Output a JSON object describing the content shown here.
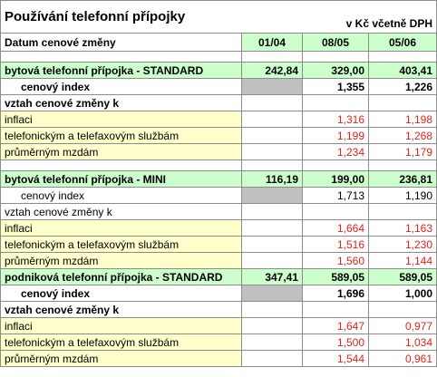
{
  "header": {
    "title": "Používání telefonní přípojky",
    "unit": "v Kč včetně DPH"
  },
  "table": {
    "columns_label": "Datum cenové změny",
    "columns": [
      "01/04",
      "08/05",
      "05/06"
    ],
    "rows": [
      {
        "label": "bytová telefonní přípojka - STANDARD",
        "values": [
          "242,84",
          "329,00",
          "403,41"
        ]
      },
      {
        "label": "cenový index",
        "values": [
          null,
          "1,355",
          "1,226"
        ]
      },
      {
        "label": "vztah cenové změny k",
        "values": [
          null,
          null,
          null
        ]
      },
      {
        "label": "inflaci",
        "values": [
          null,
          "1,316",
          "1,198"
        ]
      },
      {
        "label": "telefonickým a telefaxovým službám",
        "values": [
          null,
          "1,199",
          "1,268"
        ]
      },
      {
        "label": "průměrným mzdám",
        "values": [
          null,
          "1,234",
          "1,179"
        ]
      },
      {
        "label": "bytová telefonní přípojka - MINI",
        "values": [
          "116,19",
          "199,00",
          "236,81"
        ]
      },
      {
        "label": "cenový index",
        "values": [
          null,
          "1,713",
          "1,190"
        ]
      },
      {
        "label": "vztah cenové změny k",
        "values": [
          null,
          null,
          null
        ]
      },
      {
        "label": "inflaci",
        "values": [
          null,
          "1,664",
          "1,163"
        ]
      },
      {
        "label": "telefonickým a telefaxovým službám",
        "values": [
          null,
          "1,516",
          "1,230"
        ]
      },
      {
        "label": "průměrným mzdám",
        "values": [
          null,
          "1,560",
          "1,144"
        ]
      },
      {
        "label": "podniková telefonní přípojka - STANDARD",
        "values": [
          "347,41",
          "589,05",
          "589,05"
        ]
      },
      {
        "label": "cenový index",
        "values": [
          null,
          "1,696",
          "1,000"
        ]
      },
      {
        "label": "vztah cenové změny k",
        "values": [
          null,
          null,
          null
        ]
      },
      {
        "label": "inflaci",
        "values": [
          null,
          "1,647",
          "0,977"
        ]
      },
      {
        "label": "telefonickým a telefaxovým službám",
        "values": [
          null,
          "1,500",
          "1,034"
        ]
      },
      {
        "label": "průměrným mzdám",
        "values": [
          null,
          "1,544",
          "0,961"
        ]
      }
    ]
  }
}
